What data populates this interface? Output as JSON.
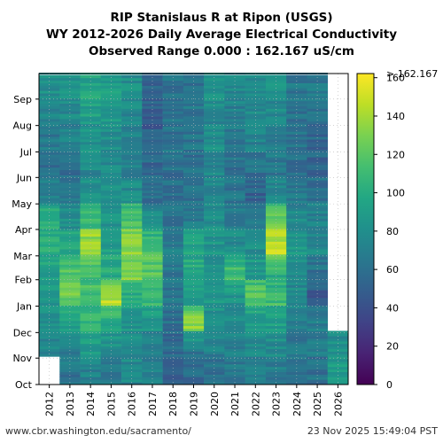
{
  "chart_data": {
    "type": "heatmap",
    "title_lines": [
      "RIP Stanislaus R at Ripon (USGS)",
      "WY 2012-2026 Daily Average Electrical Conductivity",
      "Observed Range 0.000 : 162.167 uS/cm"
    ],
    "x_categories": [
      "2012",
      "2013",
      "2014",
      "2015",
      "2016",
      "2017",
      "2018",
      "2019",
      "2020",
      "2021",
      "2022",
      "2023",
      "2024",
      "2025",
      "2026"
    ],
    "y_month_labels": [
      "Oct",
      "Nov",
      "Dec",
      "Jan",
      "Feb",
      "Mar",
      "Apr",
      "May",
      "Jun",
      "Jul",
      "Aug",
      "Sep"
    ],
    "colorbar": {
      "colormap": "viridis",
      "range": [
        0,
        162.167
      ],
      "ticks": [
        0,
        20,
        40,
        60,
        80,
        100,
        120,
        140,
        160
      ],
      "max_label": "> 162.167"
    },
    "grid": true,
    "monthly_typical_values": {
      "2012": [
        null,
        70,
        80,
        85,
        90,
        100,
        105,
        75,
        60,
        65,
        70,
        80
      ],
      "2013": [
        62,
        70,
        90,
        125,
        120,
        100,
        80,
        65,
        60,
        70,
        75,
        80
      ],
      "2014": [
        70,
        85,
        105,
        115,
        110,
        145,
        110,
        85,
        75,
        80,
        90,
        95
      ],
      "2015": [
        65,
        80,
        95,
        150,
        100,
        90,
        85,
        80,
        75,
        80,
        85,
        90
      ],
      "2016": [
        75,
        80,
        85,
        95,
        130,
        135,
        120,
        80,
        70,
        70,
        75,
        80
      ],
      "2017": [
        70,
        65,
        80,
        110,
        120,
        115,
        80,
        60,
        55,
        50,
        50,
        55
      ],
      "2018": [
        50,
        55,
        60,
        65,
        65,
        70,
        65,
        60,
        60,
        62,
        60,
        62
      ],
      "2019": [
        55,
        60,
        140,
        90,
        100,
        95,
        70,
        60,
        60,
        62,
        65,
        62
      ],
      "2020": [
        60,
        70,
        80,
        85,
        80,
        85,
        80,
        75,
        75,
        80,
        75,
        80
      ],
      "2021": [
        65,
        70,
        75,
        80,
        115,
        80,
        70,
        65,
        60,
        65,
        70,
        75
      ],
      "2022": [
        70,
        75,
        85,
        125,
        90,
        80,
        75,
        50,
        60,
        70,
        75,
        80
      ],
      "2023": [
        65,
        75,
        90,
        110,
        100,
        150,
        130,
        75,
        65,
        70,
        75,
        80
      ],
      "2024": [
        60,
        65,
        70,
        75,
        80,
        85,
        80,
        65,
        60,
        62,
        62,
        65
      ],
      "2025": [
        60,
        65,
        70,
        45,
        60,
        75,
        75,
        60,
        55,
        55,
        60,
        65
      ],
      "2026": [
        90,
        80,
        null,
        null,
        null,
        null,
        null,
        null,
        null,
        null,
        null,
        null
      ]
    }
  },
  "footer": {
    "url": "www.cbr.washington.edu/sacramento/",
    "timestamp": "23 Nov 2025 15:49:04 PST"
  }
}
